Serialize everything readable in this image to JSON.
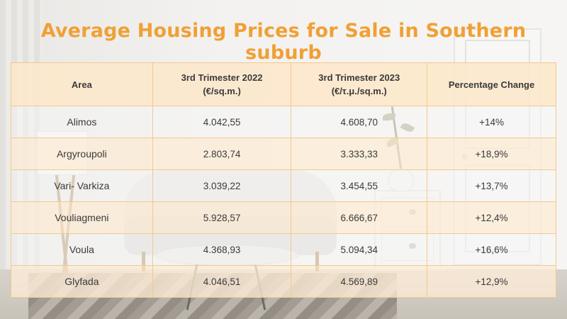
{
  "title": "Average Housing Prices for Sale in Southern suburb",
  "table": {
    "headers": {
      "area": "Area",
      "y2022_line1": "3rd Trimester 2022",
      "y2022_line2": "(€/sq.m.)",
      "y2023_line1": "3rd Trimester 2023",
      "y2023_line2": "(€/τ.μ./sq.m.)",
      "change": "Percentage Change"
    },
    "rows": [
      {
        "area": "Alimos",
        "y2022": "4.042,55",
        "y2023": "4.608,70",
        "change": "+14%"
      },
      {
        "area": "Argyroupoli",
        "y2022": "2.803,74",
        "y2023": "3.333,33",
        "change": "+18,9%"
      },
      {
        "area": "Vari- Varkiza",
        "y2022": "3.039,22",
        "y2023": "3.454,55",
        "change": "+13,7%"
      },
      {
        "area": "Vouliagmeni",
        "y2022": "5.928,57",
        "y2023": "6.666,67",
        "change": "+12,4%"
      },
      {
        "area": "Voula",
        "y2022": "4.368,93",
        "y2023": "5.094,34",
        "change": "+16,6%"
      },
      {
        "area": "Glyfada",
        "y2022": "4.046,51",
        "y2023": "4.569,89",
        "change": "+12,9%"
      }
    ]
  },
  "colors": {
    "title": "#f0a036",
    "header_bg": "#fce8cc",
    "border": "#f4c88e",
    "alt_row_bg": "#fdecd6"
  }
}
